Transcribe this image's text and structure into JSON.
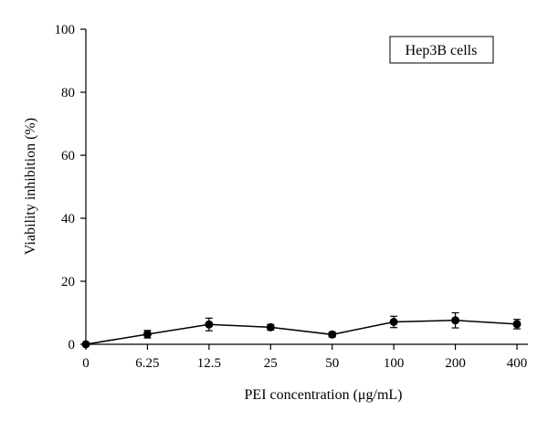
{
  "chart_data": {
    "type": "line",
    "xlabel": "PEI concentration (μg/mL)",
    "ylabel": "Viability inhibition (%)",
    "legend_label": "Hep3B cells",
    "legend_position": "top-right",
    "grid": false,
    "categories": [
      "0",
      "6.25",
      "12.5",
      "25",
      "50",
      "100",
      "200",
      "400"
    ],
    "ylim": [
      0,
      100
    ],
    "yticks": [
      "0",
      "20",
      "40",
      "60",
      "80",
      "100"
    ],
    "series": [
      {
        "values": [
          0,
          3.2,
          6.3,
          5.4,
          3.1,
          7.1,
          7.6,
          6.4
        ],
        "errors": [
          0,
          1.2,
          2.0,
          0.9,
          0.8,
          1.8,
          2.4,
          1.5
        ],
        "color": "#000000",
        "marker": "circle"
      }
    ]
  }
}
